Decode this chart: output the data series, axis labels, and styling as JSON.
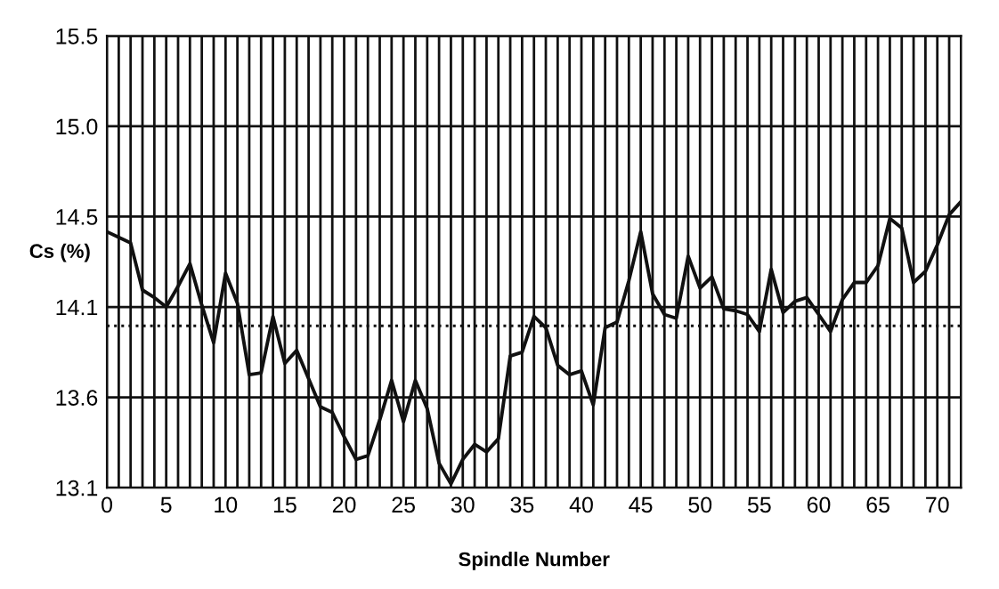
{
  "chart_data": {
    "type": "line",
    "xlabel": "Spindle Number",
    "ylabel": "Cs (%)",
    "x": [
      0,
      1,
      2,
      3,
      4,
      5,
      6,
      7,
      8,
      9,
      10,
      11,
      12,
      13,
      14,
      15,
      16,
      17,
      18,
      19,
      20,
      21,
      22,
      23,
      24,
      25,
      26,
      27,
      28,
      29,
      30,
      31,
      32,
      33,
      34,
      35,
      36,
      37,
      38,
      39,
      40,
      41,
      42,
      43,
      44,
      45,
      46,
      47,
      48,
      49,
      50,
      51,
      52,
      53,
      54,
      55,
      56,
      57,
      58,
      59,
      60,
      61,
      62,
      63,
      64,
      65,
      66,
      67,
      68,
      69,
      70,
      71,
      72
    ],
    "series": [
      {
        "color": "#111111",
        "values": [
          14.46,
          14.43,
          14.4,
          14.15,
          14.11,
          14.06,
          14.17,
          14.29,
          14.07,
          13.87,
          14.24,
          14.08,
          13.7,
          13.71,
          14.01,
          13.76,
          13.83,
          13.68,
          13.53,
          13.5,
          13.37,
          13.25,
          13.27,
          13.46,
          13.67,
          13.45,
          13.67,
          13.52,
          13.23,
          13.12,
          13.25,
          13.33,
          13.29,
          13.36,
          13.8,
          13.82,
          14.01,
          13.95,
          13.75,
          13.7,
          13.72,
          13.54,
          13.95,
          13.98,
          14.2,
          14.46,
          14.13,
          14.02,
          14.0,
          14.33,
          14.16,
          14.22,
          14.05,
          14.04,
          14.02,
          13.93,
          14.26,
          14.03,
          14.09,
          14.11,
          14.02,
          13.93,
          14.1,
          14.19,
          14.19,
          14.28,
          14.53,
          14.48,
          14.19,
          14.25,
          14.39,
          14.55,
          14.62
        ]
      }
    ],
    "xlim": [
      0,
      72
    ],
    "ylim": [
      13.1,
      15.5
    ],
    "xticks": [
      0,
      {
        "value": 1,
        "label": null
      },
      {
        "value": 2,
        "label": null
      },
      {
        "value": 3,
        "label": null
      },
      {
        "value": 4,
        "label": null
      },
      5,
      {
        "value": 6,
        "label": null
      },
      {
        "value": 7,
        "label": null
      },
      {
        "value": 8,
        "label": null
      },
      {
        "value": 9,
        "label": null
      },
      10,
      {
        "value": 11,
        "label": null
      },
      {
        "value": 12,
        "label": null
      },
      {
        "value": 13,
        "label": null
      },
      {
        "value": 14,
        "label": null
      },
      15,
      {
        "value": 16,
        "label": null
      },
      {
        "value": 17,
        "label": null
      },
      {
        "value": 18,
        "label": null
      },
      {
        "value": 19,
        "label": null
      },
      20,
      {
        "value": 21,
        "label": null
      },
      {
        "value": 22,
        "label": null
      },
      {
        "value": 23,
        "label": null
      },
      {
        "value": 24,
        "label": null
      },
      25,
      {
        "value": 26,
        "label": null
      },
      {
        "value": 27,
        "label": null
      },
      {
        "value": 28,
        "label": null
      },
      {
        "value": 29,
        "label": null
      },
      30,
      {
        "value": 31,
        "label": null
      },
      {
        "value": 32,
        "label": null
      },
      {
        "value": 33,
        "label": null
      },
      {
        "value": 34,
        "label": null
      },
      35,
      {
        "value": 36,
        "label": null
      },
      {
        "value": 37,
        "label": null
      },
      {
        "value": 38,
        "label": null
      },
      {
        "value": 39,
        "label": null
      },
      40,
      {
        "value": 41,
        "label": null
      },
      {
        "value": 42,
        "label": null
      },
      {
        "value": 43,
        "label": null
      },
      {
        "value": 44,
        "label": null
      },
      45,
      {
        "value": 46,
        "label": null
      },
      {
        "value": 47,
        "label": null
      },
      {
        "value": 48,
        "label": null
      },
      {
        "value": 49,
        "label": null
      },
      50,
      {
        "value": 51,
        "label": null
      },
      {
        "value": 52,
        "label": null
      },
      {
        "value": 53,
        "label": null
      },
      {
        "value": 54,
        "label": null
      },
      55,
      {
        "value": 56,
        "label": null
      },
      {
        "value": 57,
        "label": null
      },
      {
        "value": 58,
        "label": null
      },
      {
        "value": 59,
        "label": null
      },
      60,
      {
        "value": 61,
        "label": null
      },
      {
        "value": 62,
        "label": null
      },
      {
        "value": 63,
        "label": null
      },
      {
        "value": 64,
        "label": null
      },
      65,
      {
        "value": 66,
        "label": null
      },
      {
        "value": 67,
        "label": null
      },
      {
        "value": 68,
        "label": null
      },
      {
        "value": 69,
        "label": null
      },
      70,
      {
        "value": 71,
        "label": null
      },
      {
        "value": 72,
        "label": null
      }
    ],
    "yticks": [
      13.1,
      {
        "value": 13.58,
        "label": "13.6"
      },
      {
        "value": 14.06,
        "label": "14.1"
      },
      {
        "value": 14.54,
        "label": "14.5"
      },
      {
        "value": 15.02,
        "label": "15.0"
      },
      15.5
    ],
    "ref_lines": [
      {
        "axis": "y",
        "value": 13.96,
        "color": "#111111",
        "line_style": "dotted"
      }
    ],
    "grid": true,
    "marker": "none",
    "line_style": "solid"
  }
}
